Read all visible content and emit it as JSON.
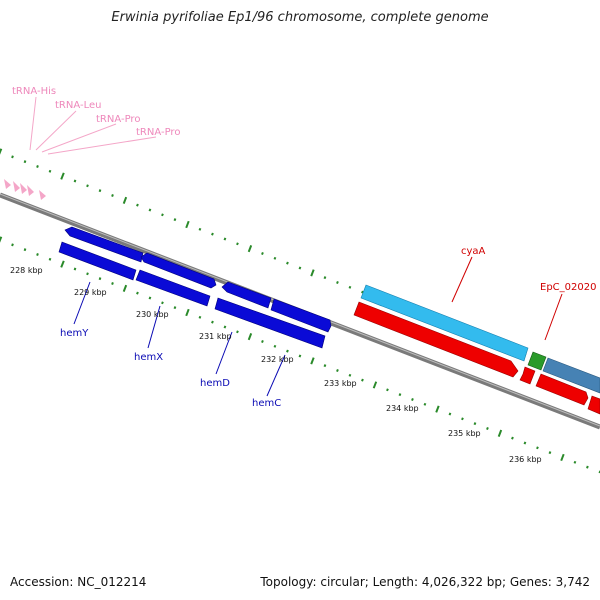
{
  "title": "Erwinia pyrifoliae Ep1/96 chromosome, complete genome",
  "footer": {
    "accession": "Accession: NC_012214",
    "topology": "Topology: circular; Length: 4,026,322 bp; Genes: 3,742"
  },
  "colors": {
    "backbone": "#7a7a7a",
    "tick": "#2a8a2a",
    "forward_gene": "#0a0ad6",
    "cyaA_gene": "#33bbee",
    "red_gene": "#ee0000",
    "green_gene": "#2a9a2a",
    "steel_gene": "#4682b4",
    "trna": "#f4a6c8",
    "trna_label": "#ee88bb",
    "hem_label": "#0a0ab4",
    "red_label": "#d00000"
  },
  "trna_labels": [
    "tRNA-His",
    "tRNA-Leu",
    "tRNA-Pro",
    "tRNA-Pro"
  ],
  "kbp_ticks": [
    "228 kbp",
    "229 kbp",
    "230 kbp",
    "231 kbp",
    "232 kbp",
    "233 kbp",
    "234 kbp",
    "235 kbp",
    "236 kbp"
  ],
  "gene_labels": {
    "hemY": "hemY",
    "hemX": "hemX",
    "hemD": "hemD",
    "hemC": "hemC",
    "cyaA": "cyaA",
    "EpC_02020": "EpC_02020"
  }
}
